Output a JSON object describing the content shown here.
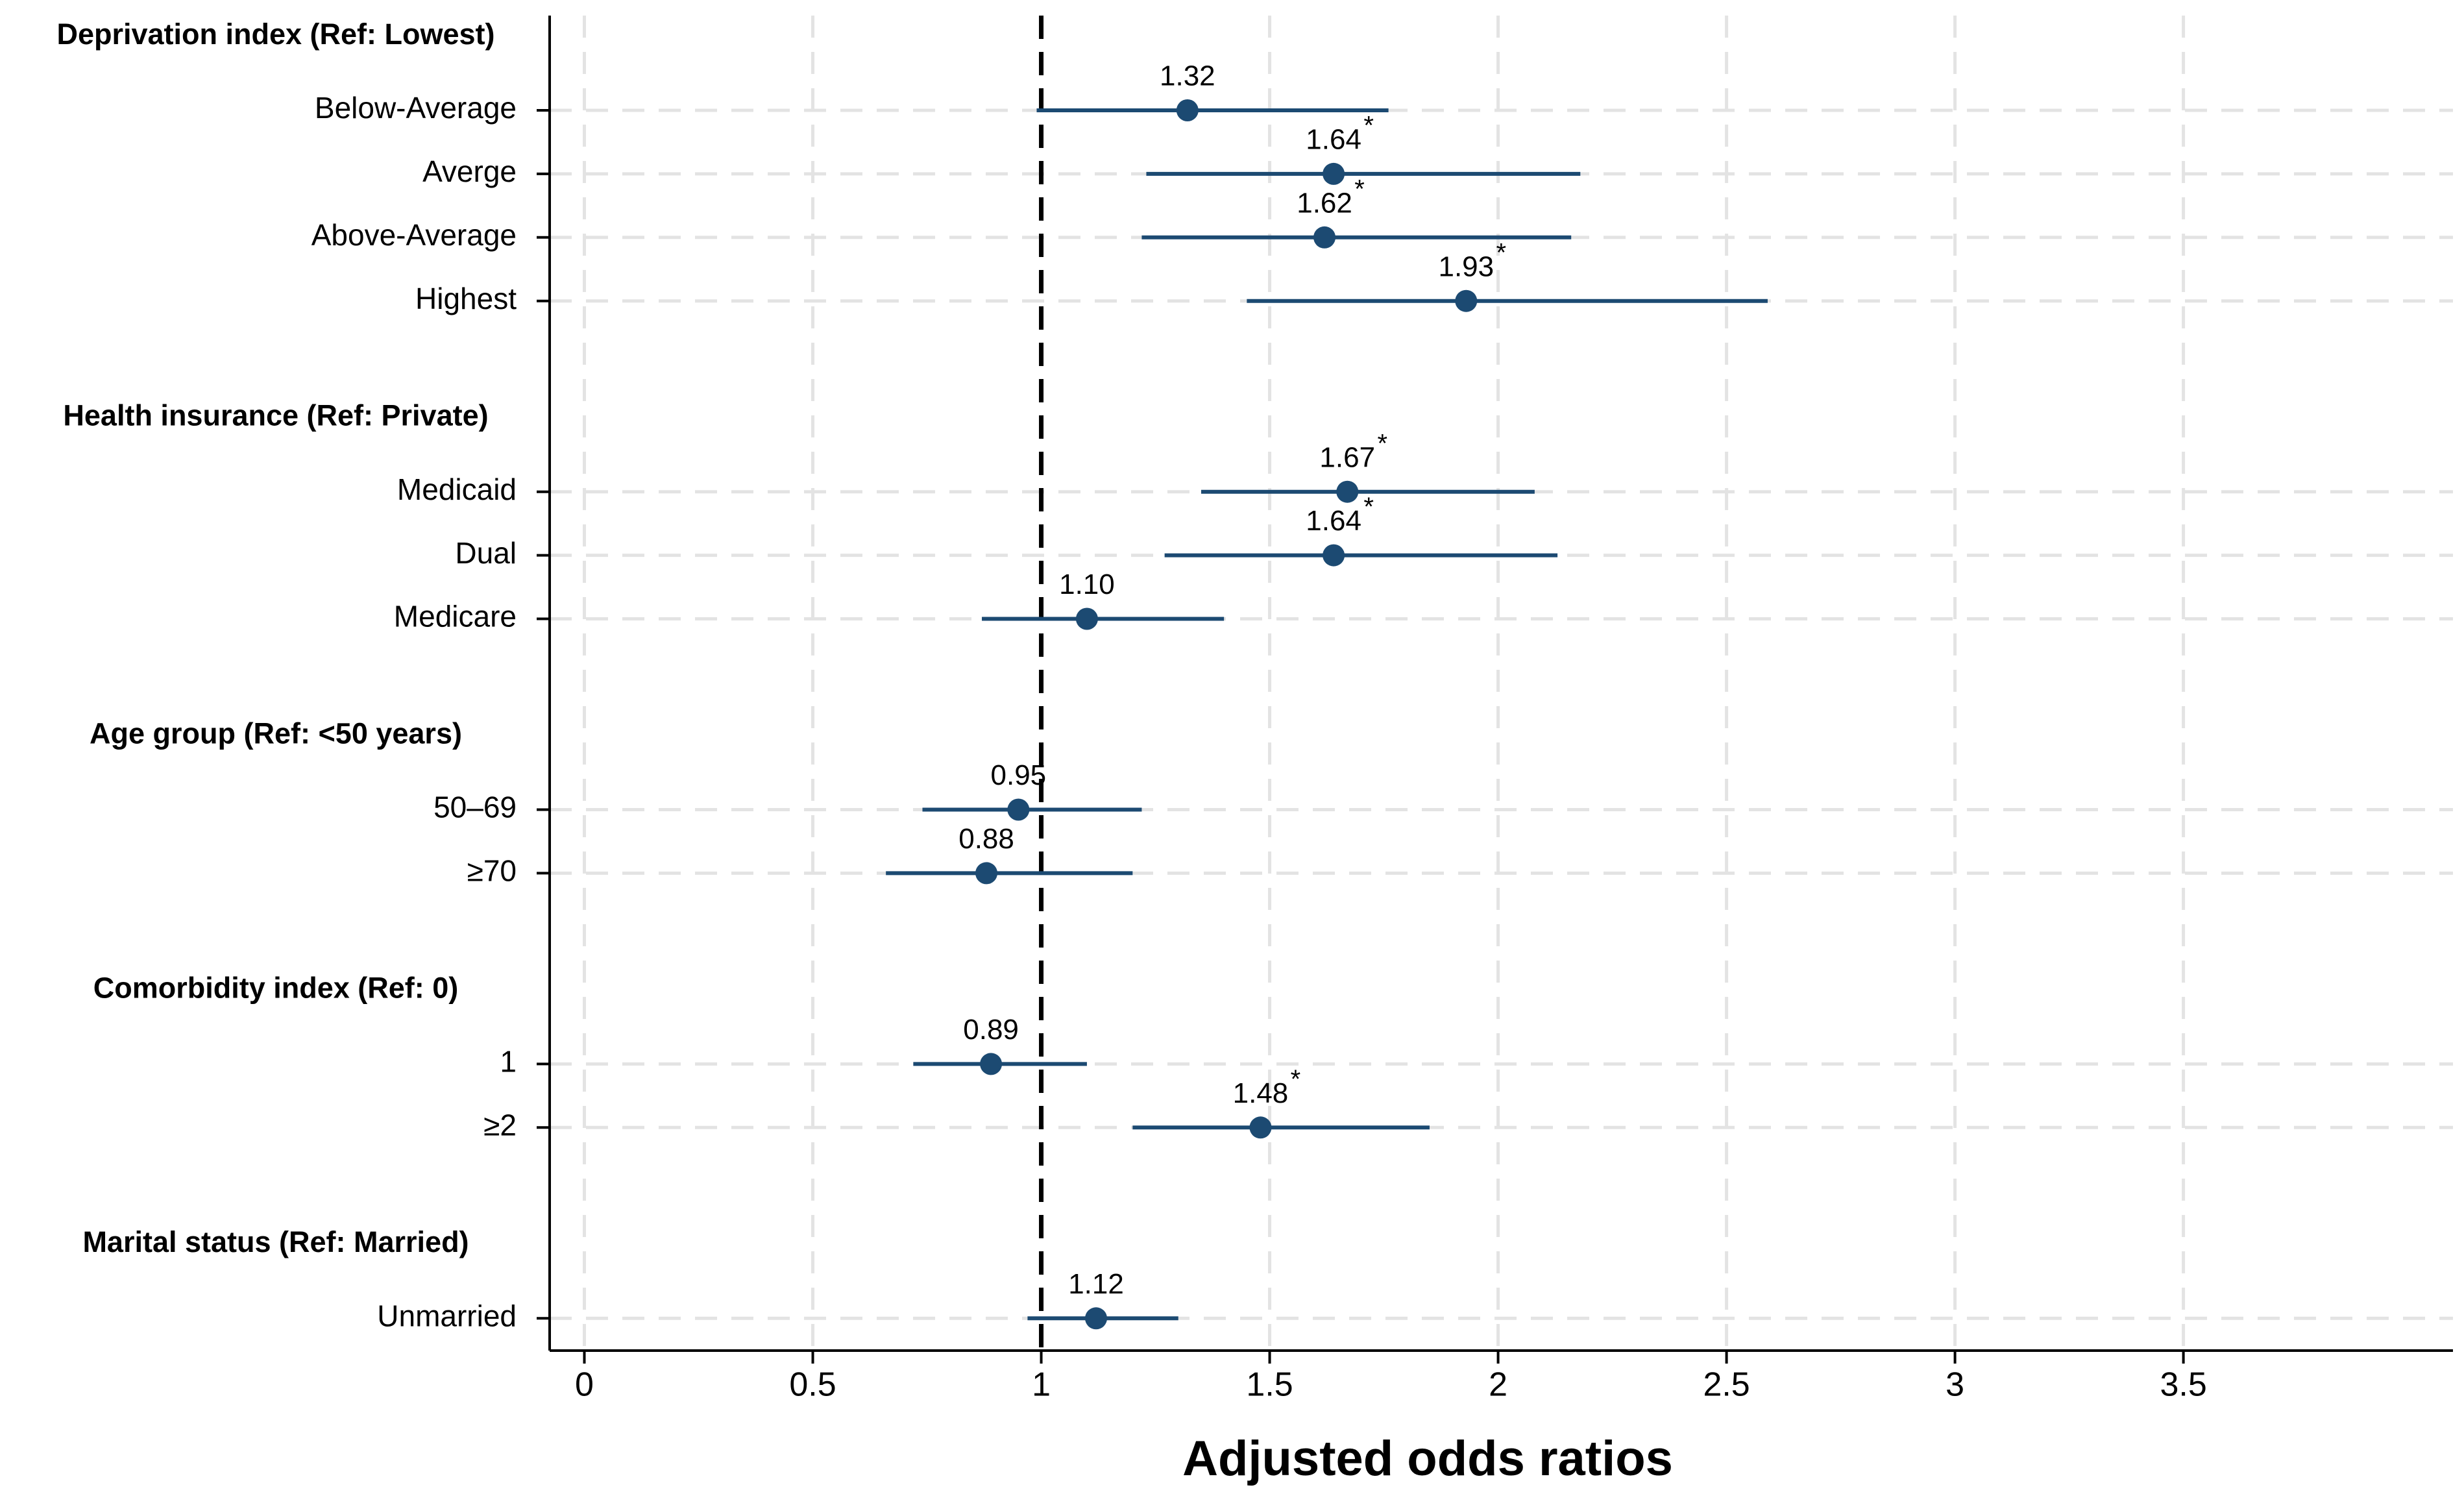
{
  "chart_data": {
    "type": "forest",
    "xlabel": "Adjusted odds ratios",
    "xlim": [
      -0.076,
      4.09
    ],
    "xticks": [
      0,
      0.5,
      1,
      1.5,
      2,
      2.5,
      3,
      3.5
    ],
    "grid": true,
    "refline": 1,
    "color": "#1c4a72",
    "annotation": "*",
    "groups": [
      {
        "title": "Deprivation index (Ref: Lowest)",
        "categories": [
          "Below-Average",
          "Averge",
          "Above-Average",
          "Highest"
        ],
        "values": [
          1.32,
          1.64,
          1.62,
          1.93
        ],
        "value_labels": [
          "1.32",
          "1.64",
          "1.62",
          "1.93"
        ],
        "lower": [
          0.99,
          1.23,
          1.22,
          1.45
        ],
        "upper": [
          1.76,
          2.18,
          2.16,
          2.59
        ],
        "significant": [
          false,
          true,
          true,
          true
        ]
      },
      {
        "title": "Health insurance (Ref: Private)",
        "categories": [
          "Medicaid",
          "Dual",
          "Medicare"
        ],
        "values": [
          1.67,
          1.64,
          1.1
        ],
        "value_labels": [
          "1.67",
          "1.64",
          "1.10"
        ],
        "lower": [
          1.35,
          1.27,
          0.87
        ],
        "upper": [
          2.08,
          2.13,
          1.4
        ],
        "significant": [
          true,
          true,
          false
        ]
      },
      {
        "title": "Age group (Ref: <50 years)",
        "categories": [
          "50–69",
          "≥70"
        ],
        "values": [
          0.95,
          0.88
        ],
        "value_labels": [
          "0.95",
          "0.88"
        ],
        "lower": [
          0.74,
          0.66
        ],
        "upper": [
          1.22,
          1.2
        ],
        "significant": [
          false,
          false
        ]
      },
      {
        "title": "Comorbidity index (Ref: 0)",
        "categories": [
          "1",
          "≥2"
        ],
        "values": [
          0.89,
          1.48
        ],
        "value_labels": [
          "0.89",
          "1.48"
        ],
        "lower": [
          0.72,
          1.2
        ],
        "upper": [
          1.1,
          1.85
        ],
        "significant": [
          false,
          true
        ]
      },
      {
        "title": "Marital status (Ref: Married)",
        "categories": [
          "Unmarried"
        ],
        "values": [
          1.12
        ],
        "value_labels": [
          "1.12"
        ],
        "lower": [
          0.97
        ],
        "upper": [
          1.3
        ],
        "significant": [
          false
        ]
      }
    ]
  }
}
